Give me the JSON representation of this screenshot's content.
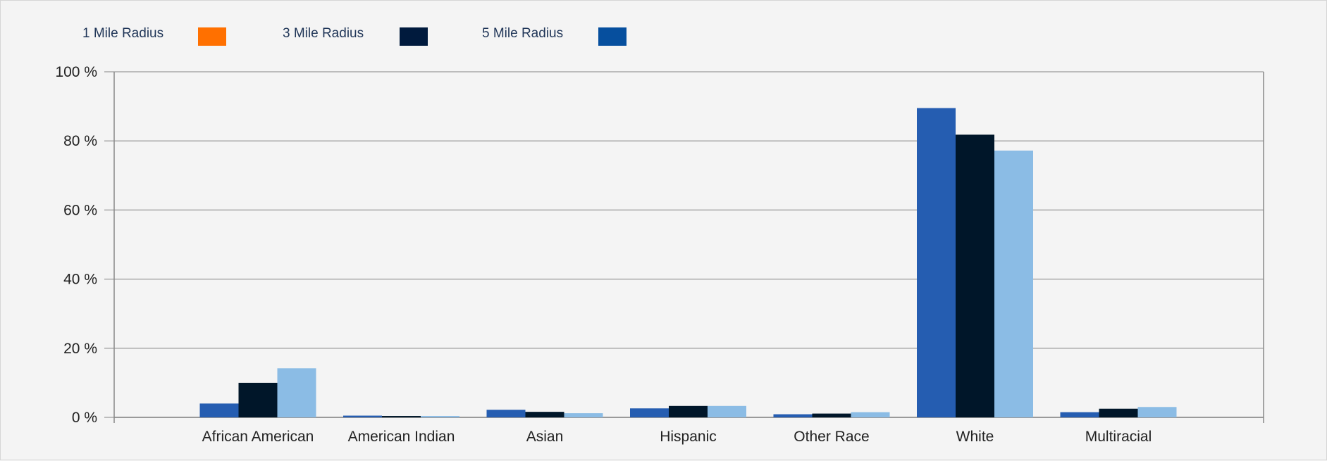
{
  "legend": {
    "items": [
      {
        "label": "1 Mile Radius",
        "color": "#ff7000"
      },
      {
        "label": "3 Mile Radius",
        "color": "#001a3d"
      },
      {
        "label": "5 Mile Radius",
        "color": "#064f9e"
      }
    ]
  },
  "chart_data": {
    "type": "bar",
    "categories": [
      "African American",
      "American Indian",
      "Asian",
      "Hispanic",
      "Other Race",
      "White",
      "Multiracial"
    ],
    "series": [
      {
        "name": "1 Mile Radius",
        "color": "#255db1",
        "values": [
          4,
          0.5,
          2.2,
          2.6,
          0.9,
          89.5,
          1.5
        ]
      },
      {
        "name": "3 Mile Radius",
        "color": "#001629",
        "values": [
          10,
          0.4,
          1.6,
          3.3,
          1.1,
          81.8,
          2.5
        ]
      },
      {
        "name": "5 Mile Radius",
        "color": "#8bbce5",
        "values": [
          14.2,
          0.4,
          1.2,
          3.3,
          1.5,
          77.2,
          3.0
        ]
      }
    ],
    "ylim": [
      0,
      100
    ],
    "yticks": [
      {
        "value": 0,
        "label": "0 %"
      },
      {
        "value": 20,
        "label": "20 %"
      },
      {
        "value": 40,
        "label": "40 %"
      },
      {
        "value": 60,
        "label": "60 %"
      },
      {
        "value": 80,
        "label": "80 %"
      },
      {
        "value": 100,
        "label": "100 %"
      }
    ],
    "grid": true,
    "legend_position": "top-left"
  }
}
